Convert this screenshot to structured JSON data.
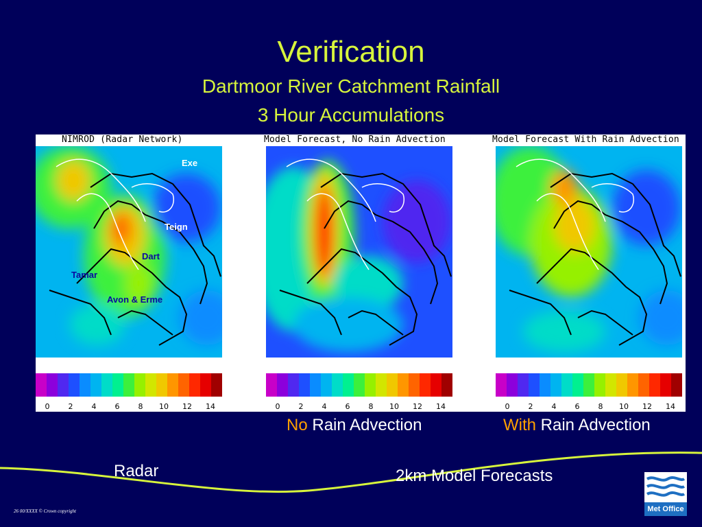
{
  "slide": {
    "title": "Verification",
    "subtitle_line1": "Dartmoor River Catchment Rainfall",
    "subtitle_line2": "3 Hour Accumulations",
    "footer_text": "26   00/XXXX   © Crown copyright",
    "logo_text": "Met Office"
  },
  "panels": [
    {
      "title": "NIMROD (Radar Network)"
    },
    {
      "title": "Model Forecast, No Rain Advection"
    },
    {
      "title": "Model Forecast With Rain Advection"
    }
  ],
  "rivers": {
    "exe": "Exe",
    "teign": "Teign",
    "dart": "Dart",
    "tamar": "Tamar",
    "avon_erme": "Avon & Erme"
  },
  "scale": {
    "colors": [
      "#c800c8",
      "#8c00dc",
      "#5028f0",
      "#1e50ff",
      "#0a8cff",
      "#00b4f0",
      "#00dcc8",
      "#00f090",
      "#3cf03c",
      "#96f000",
      "#d2e600",
      "#f0c800",
      "#ff9600",
      "#ff6400",
      "#ff2800",
      "#e60000",
      "#a00000"
    ],
    "ticks": [
      "0",
      "2",
      "4",
      "6",
      "8",
      "10",
      "12",
      "14"
    ]
  },
  "captions": {
    "no_prefix": "No",
    "no_rest": " Rain Advection",
    "with_prefix": "With",
    "with_rest": " Rain Advection",
    "radar": "Radar",
    "model": "2km Model Forecasts"
  },
  "colors": {
    "background": "#00005a",
    "title": "#d7f53c",
    "accent": "#ffa000"
  }
}
